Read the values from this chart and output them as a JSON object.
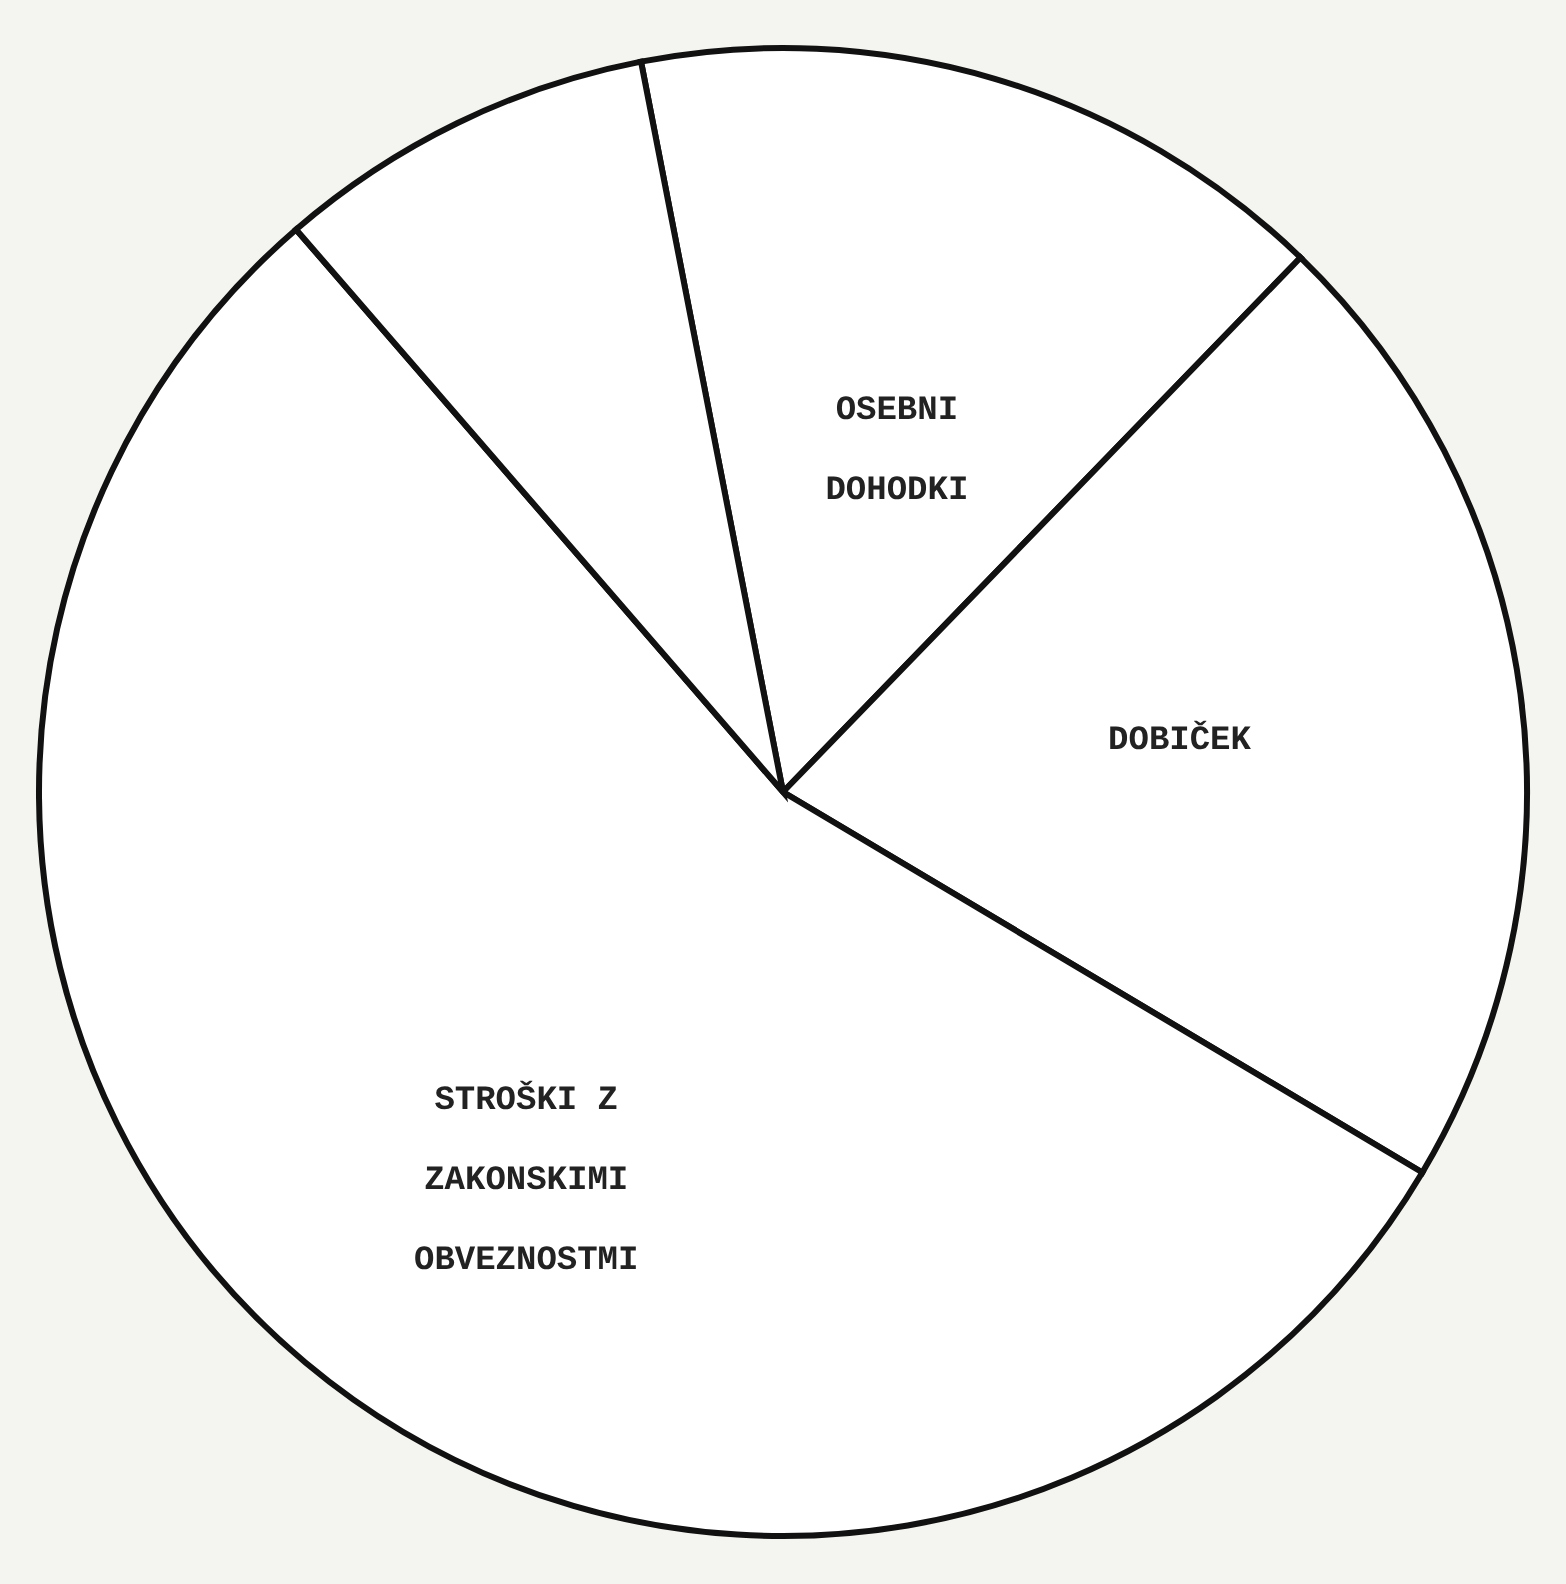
{
  "chart_data": {
    "type": "pie",
    "categories": [
      "OSEBNI DOHODKI",
      "DOBIČEK",
      "STROŠKI Z ZAKONSKIMI OBVEZNOSTMI",
      null
    ],
    "values": [
      15.3,
      21.3,
      55.1,
      8.3
    ],
    "colors": [
      "#ffffff",
      "#ffffff",
      "#ffffff",
      "#ffffff"
    ]
  }
}
